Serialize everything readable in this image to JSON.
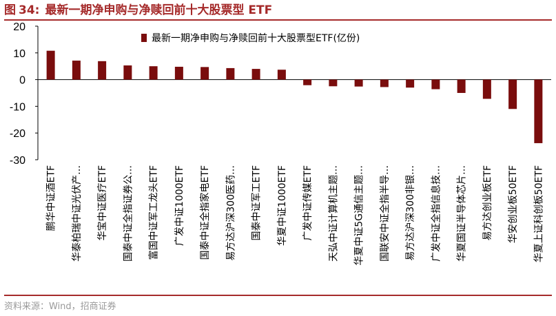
{
  "header": {
    "figure_label": "图",
    "figure_number": "34",
    "separator": ":",
    "title": "最新一期净申购与净赎回前十大股票型 ETF"
  },
  "footer": {
    "source": "资料来源：Wind，招商证券"
  },
  "colors": {
    "accent": "#a52a2a",
    "bar": "#7a0d0d",
    "source_text": "#999999"
  },
  "chart_data": {
    "type": "bar",
    "title": "最新一期净申购与净赎回前十大股票型 ETF",
    "xlabel": "",
    "ylabel": "",
    "ylim": [
      -30,
      20
    ],
    "yticks": [
      20,
      10,
      0,
      -10,
      -20,
      -30
    ],
    "grid": false,
    "legend_position": "top-center",
    "categories": [
      "鹏华中证酒ETF",
      "华泰柏瑞中证光伏产…",
      "华宝中证医疗ETF",
      "国泰中证全指证券公…",
      "富国中证军工龙头ETF",
      "广发中证1000ETF",
      "国泰中证全指家电ETF",
      "易方达沪深300医药…",
      "国泰中证军工ETF",
      "华夏中证1000ETF",
      "广发中证传媒ETF",
      "天弘中证计算机主题…",
      "华夏中证5G通信主题…",
      "国联安中证全指半导…",
      "易方达沪深300非银…",
      "广发中证全指信息技…",
      "华夏国证半导体芯片…",
      "易方达创业板ETF",
      "华安创业板50ETF",
      "华夏上证科创板50ETF"
    ],
    "series": [
      {
        "name": "最新一期净申购与净赎回前十大股票型ETF(亿份)",
        "values": [
          10.8,
          7.1,
          6.9,
          5.3,
          5.0,
          4.8,
          4.7,
          4.3,
          4.0,
          3.7,
          -2.1,
          -2.5,
          -2.6,
          -2.8,
          -3.0,
          -3.6,
          -5.0,
          -7.2,
          -11.0,
          -23.8
        ]
      }
    ]
  }
}
